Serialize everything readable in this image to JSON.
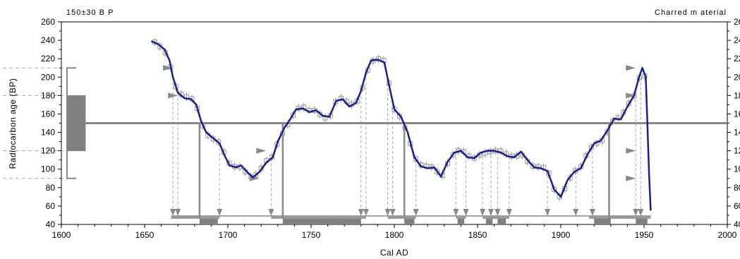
{
  "chart_data": {
    "type": "line",
    "title_left": "150±30 B P",
    "title_right": "Charred m aterial",
    "xlabel": "Cal AD",
    "ylabel": "Radiocarbon age (BP)",
    "xlim": [
      1600,
      2000
    ],
    "ylim": [
      40,
      260
    ],
    "x_ticks": [
      1600,
      1650,
      1700,
      1750,
      1800,
      1850,
      1900,
      1950,
      2000
    ],
    "y_ticks": [
      40,
      60,
      80,
      100,
      120,
      140,
      160,
      180,
      200,
      220,
      240,
      260
    ],
    "sample_age": 150,
    "sample_error": 30,
    "calibration_curve": {
      "name": "",
      "color": "#1a1f8c",
      "points": [
        [
          1654,
          239
        ],
        [
          1658,
          236
        ],
        [
          1662,
          230
        ],
        [
          1665,
          218
        ],
        [
          1667,
          200
        ],
        [
          1670,
          183
        ],
        [
          1674,
          177
        ],
        [
          1678,
          176
        ],
        [
          1681,
          170
        ],
        [
          1684,
          152
        ],
        [
          1687,
          140
        ],
        [
          1691,
          134
        ],
        [
          1695,
          128
        ],
        [
          1698,
          115
        ],
        [
          1701,
          104
        ],
        [
          1705,
          102
        ],
        [
          1708,
          104
        ],
        [
          1711,
          98
        ],
        [
          1715,
          91
        ],
        [
          1719,
          97
        ],
        [
          1723,
          107
        ],
        [
          1727,
          113
        ],
        [
          1730,
          130
        ],
        [
          1734,
          145
        ],
        [
          1737,
          153
        ],
        [
          1741,
          165
        ],
        [
          1745,
          166
        ],
        [
          1749,
          162
        ],
        [
          1753,
          164
        ],
        [
          1757,
          158
        ],
        [
          1761,
          157
        ],
        [
          1765,
          174
        ],
        [
          1769,
          176
        ],
        [
          1773,
          168
        ],
        [
          1777,
          172
        ],
        [
          1780,
          185
        ],
        [
          1783,
          205
        ],
        [
          1786,
          218
        ],
        [
          1790,
          219
        ],
        [
          1794,
          216
        ],
        [
          1797,
          190
        ],
        [
          1800,
          165
        ],
        [
          1804,
          157
        ],
        [
          1808,
          140
        ],
        [
          1812,
          113
        ],
        [
          1816,
          103
        ],
        [
          1820,
          101
        ],
        [
          1824,
          102
        ],
        [
          1828,
          92
        ],
        [
          1832,
          108
        ],
        [
          1836,
          118
        ],
        [
          1840,
          120
        ],
        [
          1844,
          113
        ],
        [
          1848,
          112
        ],
        [
          1852,
          118
        ],
        [
          1856,
          120
        ],
        [
          1860,
          120
        ],
        [
          1864,
          118
        ],
        [
          1868,
          114
        ],
        [
          1872,
          113
        ],
        [
          1876,
          119
        ],
        [
          1880,
          110
        ],
        [
          1884,
          102
        ],
        [
          1888,
          101
        ],
        [
          1892,
          98
        ],
        [
          1896,
          78
        ],
        [
          1900,
          70
        ],
        [
          1904,
          88
        ],
        [
          1908,
          97
        ],
        [
          1912,
          101
        ],
        [
          1916,
          116
        ],
        [
          1920,
          128
        ],
        [
          1924,
          131
        ],
        [
          1928,
          142
        ],
        [
          1932,
          155
        ],
        [
          1936,
          154
        ],
        [
          1940,
          168
        ],
        [
          1944,
          180
        ],
        [
          1947,
          200
        ],
        [
          1949,
          210
        ],
        [
          1951,
          200
        ],
        [
          1952,
          150
        ],
        [
          1953,
          95
        ],
        [
          1954,
          55
        ]
      ]
    },
    "dashed_levels": [
      90,
      120,
      180,
      210
    ],
    "ranges_68": [
      [
        1683,
        1694
      ],
      [
        1733,
        1780
      ],
      [
        1806,
        1812
      ],
      [
        1838,
        1842
      ],
      [
        1855,
        1859
      ],
      [
        1862,
        1867
      ],
      [
        1920,
        1930
      ],
      [
        1945,
        1952
      ]
    ],
    "ranges_95": [
      [
        1666,
        1695
      ],
      [
        1726,
        1783
      ],
      [
        1796,
        1813
      ],
      [
        1837,
        1843
      ],
      [
        1853,
        1869
      ],
      [
        1917,
        1954
      ]
    ],
    "intercepts": [
      1683,
      1733,
      1806,
      1929
    ]
  }
}
